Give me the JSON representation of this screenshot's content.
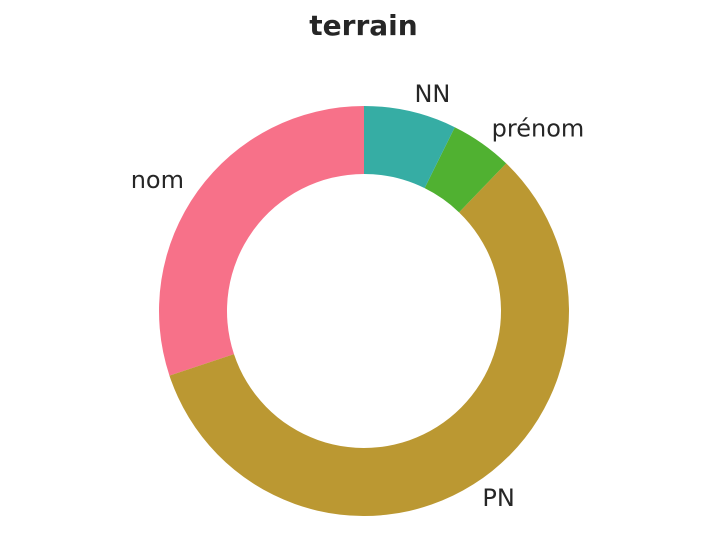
{
  "chart_data": {
    "type": "pie",
    "title": "terrain",
    "donut": true,
    "start_angle_deg": 90,
    "direction": "counterclockwise",
    "slices": [
      {
        "label": "nom",
        "value": 30.1,
        "color": "#f77189"
      },
      {
        "label": "PN",
        "value": 57.7,
        "color": "#bb9832"
      },
      {
        "label": "prénom",
        "value": 4.9,
        "color": "#50b131"
      },
      {
        "label": "NN",
        "value": 7.3,
        "color": "#36ada4"
      }
    ]
  }
}
